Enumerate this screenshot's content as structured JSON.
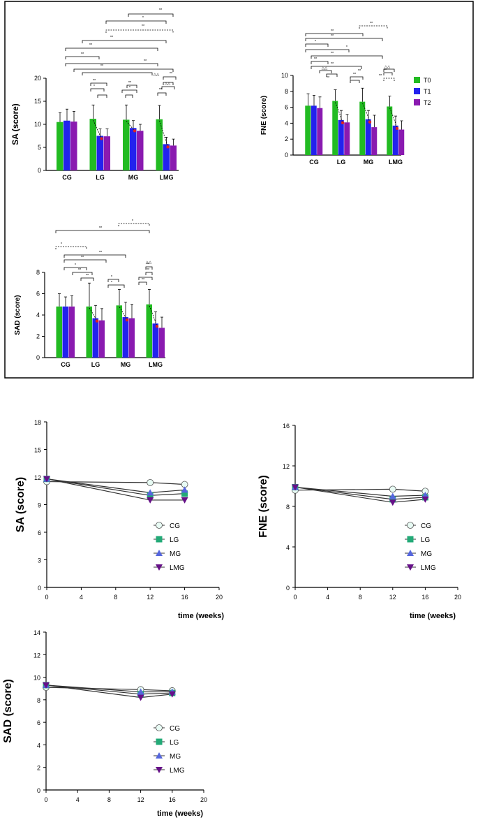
{
  "colors": {
    "T0": "#22bb22",
    "T1": "#2222ee",
    "T2": "#8a1ab0",
    "arrow": "#dd2222",
    "CG": "#e8fbf4",
    "LG": "#22aa77",
    "MG": "#5566dd",
    "LMG": "#661188"
  },
  "chart_data": [
    {
      "type": "bar",
      "title": "",
      "ylabel": "SA (score)",
      "ylim": [
        0,
        20
      ],
      "yticks": [
        0,
        5,
        10,
        15,
        20
      ],
      "categories": [
        "CG",
        "LG",
        "MG",
        "LMG"
      ],
      "series": [
        {
          "name": "T0",
          "values": [
            10.5,
            11.2,
            11.0,
            11.1
          ],
          "err": [
            2.0,
            3.0,
            3.2,
            3.0
          ]
        },
        {
          "name": "T1",
          "values": [
            10.8,
            7.5,
            9.2,
            5.7
          ],
          "err": [
            2.5,
            1.5,
            1.6,
            1.5
          ]
        },
        {
          "name": "T2",
          "values": [
            10.6,
            7.4,
            8.6,
            5.4
          ],
          "err": [
            2.2,
            1.6,
            1.4,
            1.4
          ]
        }
      ],
      "annotations": [
        "**",
        "*",
        "**",
        "**",
        "**",
        "**",
        "**",
        "**",
        "**",
        "*",
        "**",
        "*",
        "**",
        "△△",
        "△△",
        "**"
      ]
    },
    {
      "type": "bar",
      "title": "",
      "ylabel": "FNE (score)",
      "ylim": [
        0,
        10
      ],
      "yticks": [
        0,
        2,
        4,
        6,
        8,
        10
      ],
      "categories": [
        "CG",
        "LG",
        "MG",
        "LMG"
      ],
      "legend": [
        "T0",
        "T1",
        "T2"
      ],
      "series": [
        {
          "name": "T0",
          "values": [
            6.2,
            6.8,
            6.7,
            6.1
          ],
          "err": [
            1.5,
            1.4,
            1.7,
            1.3
          ]
        },
        {
          "name": "T1",
          "values": [
            6.2,
            4.4,
            4.5,
            3.7
          ],
          "err": [
            1.3,
            1.2,
            1.1,
            1.2
          ]
        },
        {
          "name": "T2",
          "values": [
            5.9,
            4.1,
            3.5,
            3.2
          ],
          "err": [
            1.4,
            1.0,
            1.5,
            1.1
          ]
        }
      ],
      "annotations": [
        "**",
        "**",
        "**",
        "*",
        "*",
        "**",
        "**",
        "**",
        "△△",
        "**",
        "**",
        "△△",
        "**",
        "**",
        "**"
      ]
    },
    {
      "type": "bar",
      "title": "",
      "ylabel": "SAD (score)",
      "ylim": [
        0,
        8
      ],
      "yticks": [
        0,
        2,
        4,
        6,
        8
      ],
      "categories": [
        "CG",
        "LG",
        "MG",
        "LMG"
      ],
      "series": [
        {
          "name": "T0",
          "values": [
            4.8,
            4.8,
            4.9,
            5.0
          ],
          "err": [
            1.2,
            2.2,
            1.5,
            1.4
          ]
        },
        {
          "name": "T1",
          "values": [
            4.8,
            3.7,
            3.8,
            3.2
          ],
          "err": [
            0.9,
            1.2,
            1.4,
            1.1
          ]
        },
        {
          "name": "T2",
          "values": [
            4.8,
            3.5,
            3.7,
            2.8
          ],
          "err": [
            1.0,
            1.1,
            1.3,
            1.0
          ]
        }
      ],
      "annotations": [
        "*",
        "**",
        "*",
        "**",
        "**",
        "*",
        "**",
        "**",
        "*",
        "*",
        "**",
        "**",
        "**",
        "△△"
      ]
    },
    {
      "type": "line",
      "xlabel": "time (weeks)",
      "ylabel": "SA (score)",
      "xlim": [
        0,
        20
      ],
      "ylim": [
        0,
        18
      ],
      "xticks": [
        0,
        4,
        8,
        12,
        16,
        20
      ],
      "yticks": [
        0,
        3,
        6,
        9,
        12,
        15,
        18
      ],
      "x": [
        0,
        12,
        16
      ],
      "series": [
        {
          "name": "CG",
          "values": [
            11.5,
            11.4,
            11.2
          ]
        },
        {
          "name": "LG",
          "values": [
            11.8,
            10.0,
            10.2
          ]
        },
        {
          "name": "MG",
          "values": [
            11.8,
            10.3,
            10.6
          ]
        },
        {
          "name": "LMG",
          "values": [
            11.8,
            9.5,
            9.5
          ]
        }
      ]
    },
    {
      "type": "line",
      "xlabel": "time (weeks)",
      "ylabel": "FNE (score)",
      "xlim": [
        0,
        20
      ],
      "ylim": [
        0,
        16
      ],
      "xticks": [
        0,
        4,
        8,
        12,
        16,
        20
      ],
      "yticks": [
        0,
        4,
        8,
        12,
        16
      ],
      "x": [
        0,
        12,
        16
      ],
      "series": [
        {
          "name": "CG",
          "values": [
            9.6,
            9.7,
            9.5
          ]
        },
        {
          "name": "LG",
          "values": [
            9.9,
            8.7,
            8.9
          ]
        },
        {
          "name": "MG",
          "values": [
            9.9,
            9.0,
            9.1
          ]
        },
        {
          "name": "LMG",
          "values": [
            9.9,
            8.4,
            8.7
          ]
        }
      ]
    },
    {
      "type": "line",
      "xlabel": "time (weeks)",
      "ylabel": "SAD (score)",
      "xlim": [
        0,
        20
      ],
      "ylim": [
        0,
        14
      ],
      "xticks": [
        0,
        4,
        8,
        12,
        16,
        20
      ],
      "yticks": [
        0,
        2,
        4,
        6,
        8,
        10,
        12,
        14
      ],
      "x": [
        0,
        12,
        16
      ],
      "series": [
        {
          "name": "CG",
          "values": [
            9.1,
            8.9,
            8.8
          ]
        },
        {
          "name": "LG",
          "values": [
            9.3,
            8.5,
            8.6
          ]
        },
        {
          "name": "MG",
          "values": [
            9.3,
            8.7,
            8.7
          ]
        },
        {
          "name": "LMG",
          "values": [
            9.3,
            8.2,
            8.5
          ]
        }
      ]
    }
  ]
}
